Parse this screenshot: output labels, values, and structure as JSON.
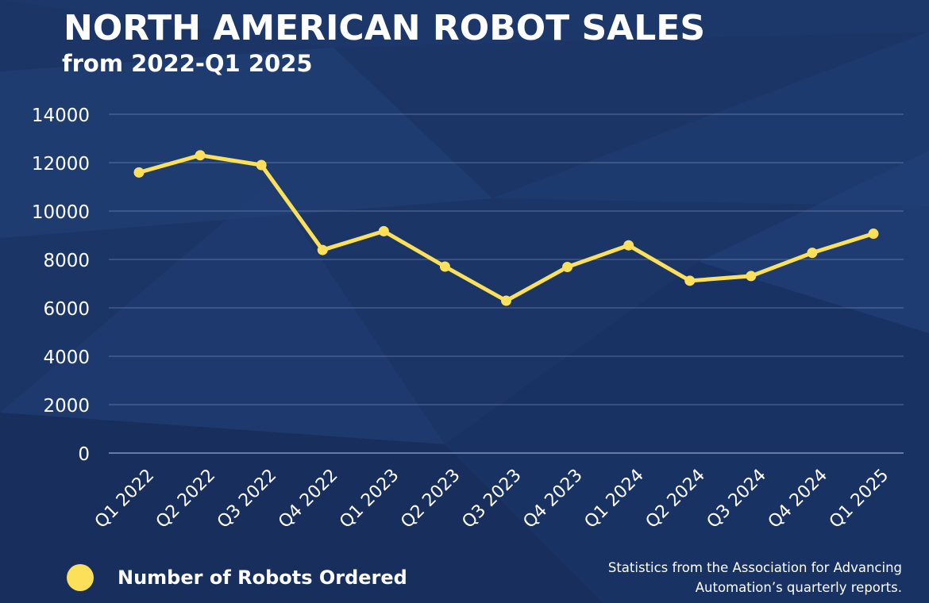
{
  "title": "NORTH AMERICAN ROBOT SALES",
  "subtitle": "from 2022-Q1 2025",
  "legend": {
    "label": "Number of Robots Ordered"
  },
  "source": {
    "line1": "Statistics from the Association for Advancing",
    "line2": "Automation’s quarterly reports."
  },
  "colors": {
    "background": "#1b3566",
    "line": "#fde05a",
    "text": "#ffffff",
    "grid": "#8c9fc4"
  },
  "chart_data": {
    "type": "line",
    "title": "NORTH AMERICAN ROBOT SALES",
    "subtitle": "from 2022-Q1 2025",
    "xlabel": "",
    "ylabel": "",
    "categories": [
      "Q1 2022",
      "Q2 2022",
      "Q3 2022",
      "Q4 2022",
      "Q1 2023",
      "Q2 2023",
      "Q3 2023",
      "Q4 2023",
      "Q1 2024",
      "Q2 2024",
      "Q3 2024",
      "Q4 2024",
      "Q1 2025"
    ],
    "series": [
      {
        "name": "Number of Robots Ordered",
        "values": [
          11595,
          12305,
          11902,
          8391,
          9168,
          7705,
          6294,
          7688,
          8584,
          7120,
          7314,
          8274,
          9064
        ]
      }
    ],
    "ylim": [
      0,
      14000
    ],
    "yticks": [
      0,
      2000,
      4000,
      6000,
      8000,
      10000,
      12000,
      14000
    ],
    "grid": true,
    "legend_position": "bottom-left"
  }
}
